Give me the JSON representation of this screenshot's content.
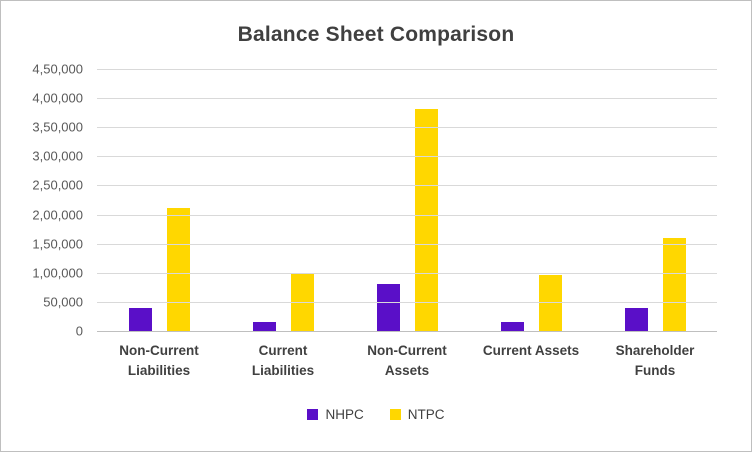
{
  "chart_data": {
    "type": "bar",
    "title": "Balance Sheet Comparison",
    "categories": [
      "Non-Current Liabilities",
      "Current Liabilities",
      "Non-Current Assets",
      "Current Assets",
      "Shareholder Funds"
    ],
    "series": [
      {
        "name": "NHPC",
        "color": "#5a0fc8",
        "values": [
          40000,
          15000,
          80000,
          15000,
          40000
        ]
      },
      {
        "name": "NTPC",
        "color": "#ffd700",
        "values": [
          212000,
          100000,
          382000,
          97000,
          160000
        ]
      }
    ],
    "xlabel": "",
    "ylabel": "",
    "ylim": [
      0,
      450000
    ],
    "ytick_step": 50000,
    "ytick_labels": [
      "0",
      "50,000",
      "1,00,000",
      "1,50,000",
      "2,00,000",
      "2,50,000",
      "3,00,000",
      "3,50,000",
      "4,00,000",
      "4,50,000"
    ],
    "grid": true,
    "legend_position": "bottom"
  }
}
